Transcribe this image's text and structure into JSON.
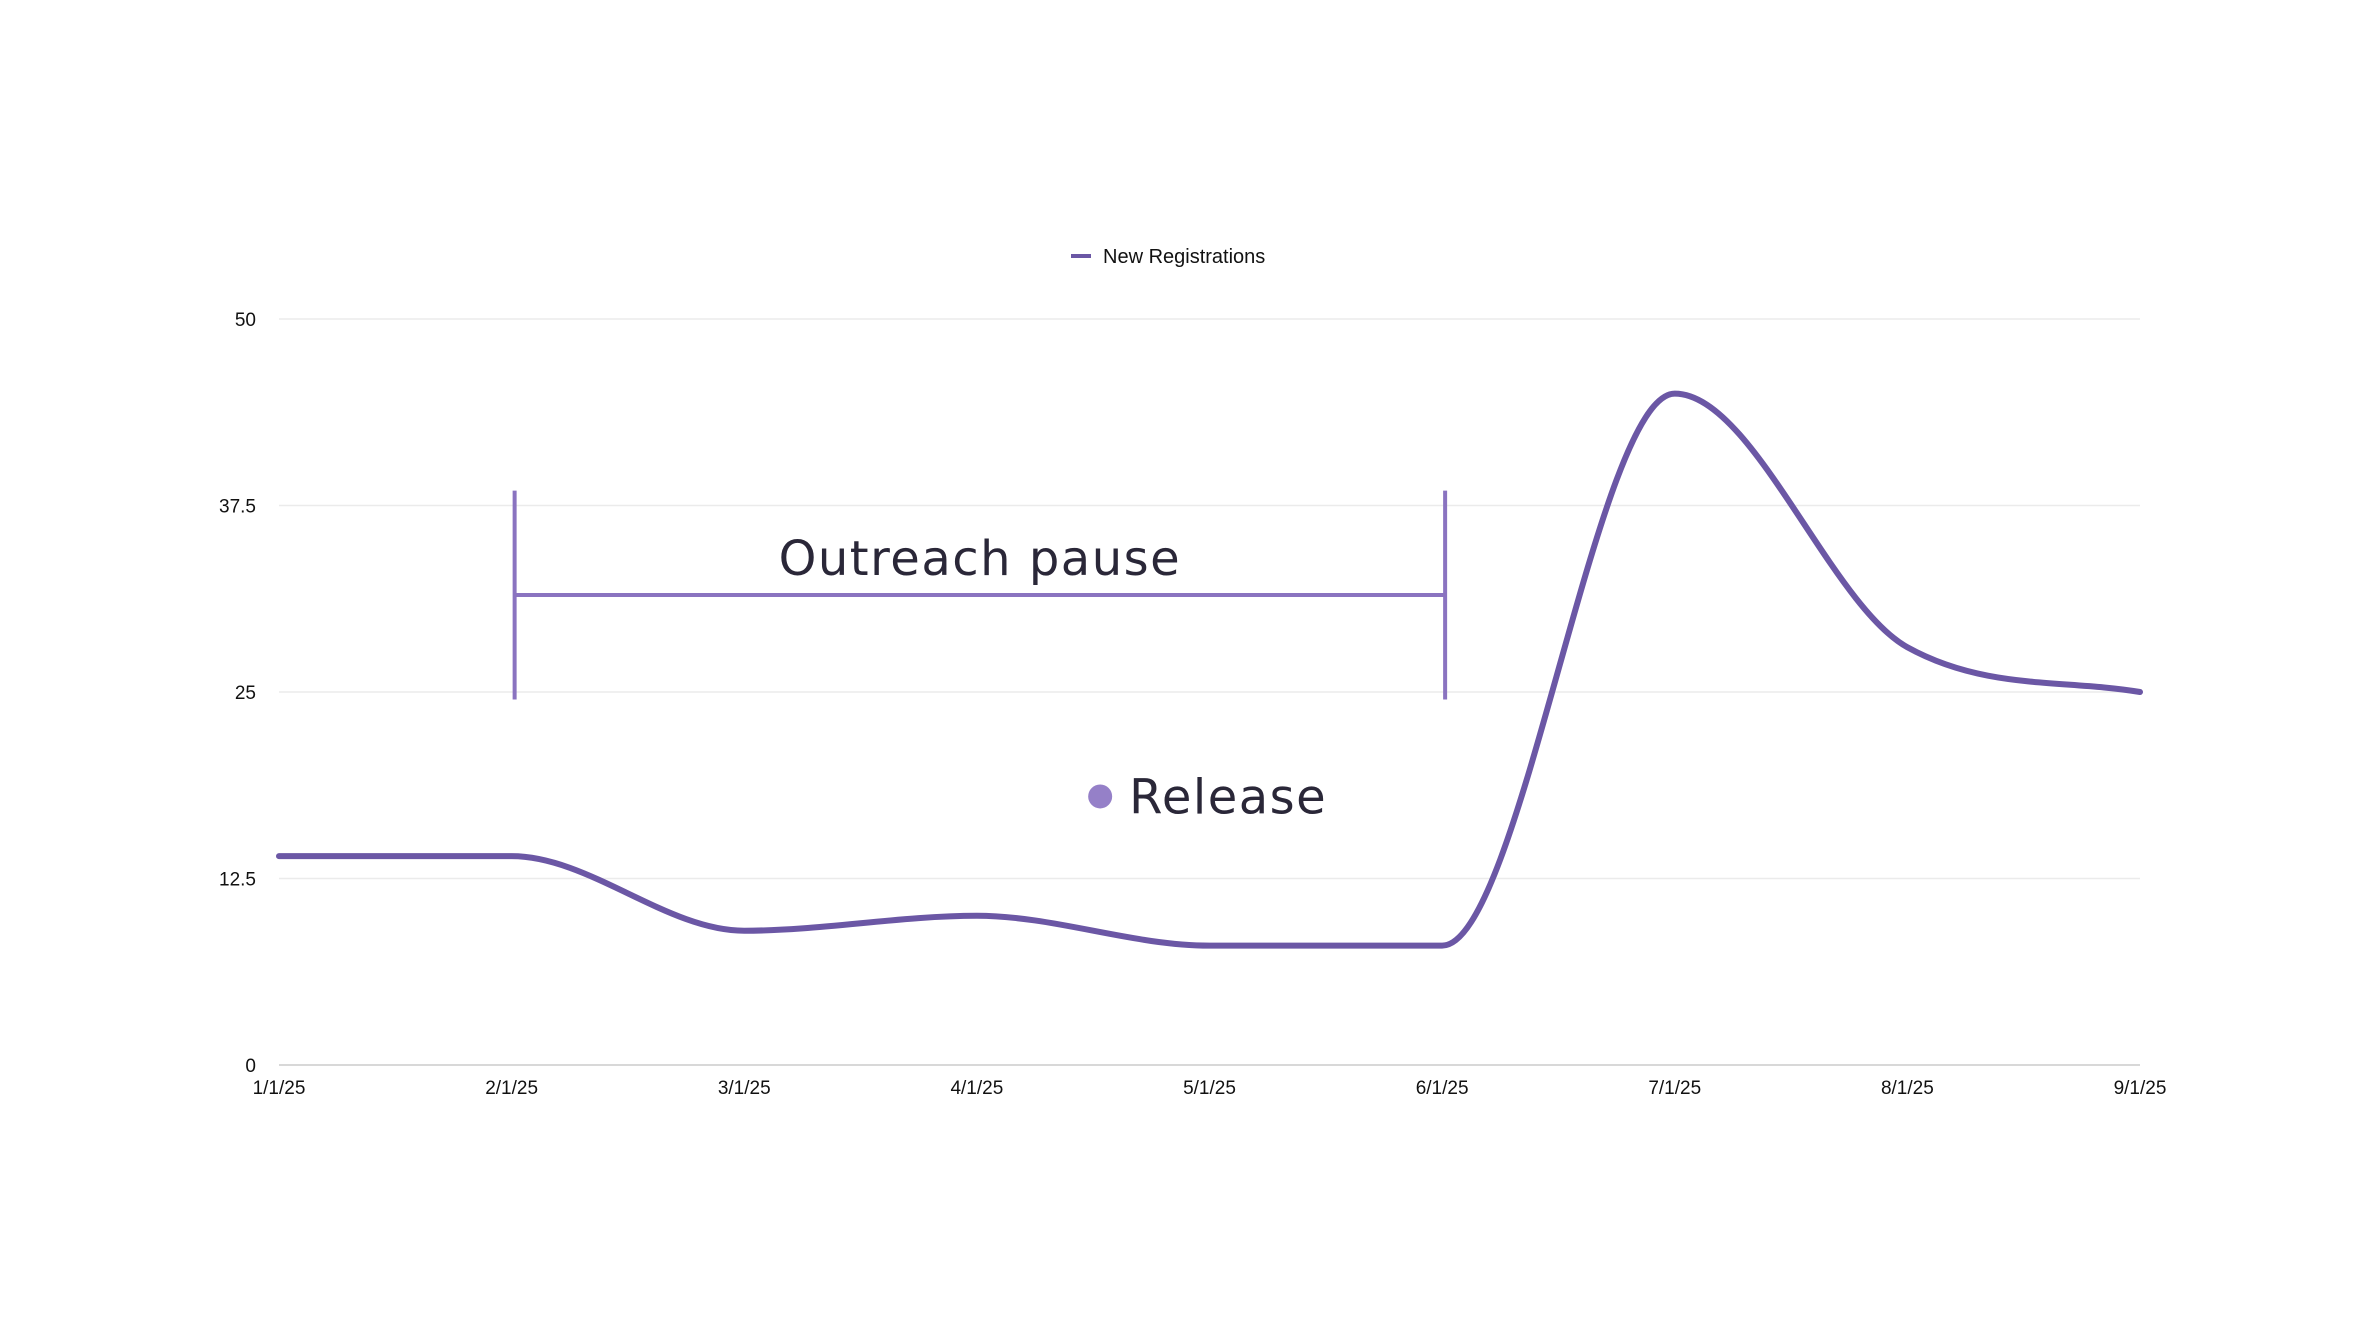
{
  "chart_data": {
    "type": "line",
    "title": "",
    "xlabel": "",
    "ylabel": "",
    "categories": [
      "1/1/25",
      "2/1/25",
      "3/1/25",
      "4/1/25",
      "5/1/25",
      "6/1/25",
      "7/1/25",
      "8/1/25",
      "9/1/25"
    ],
    "ylim": [
      0,
      50
    ],
    "yticks": [
      "0",
      "12.5",
      "25",
      "37.5",
      "50"
    ],
    "yticks_values": [
      0,
      12.5,
      25,
      37.5,
      50
    ],
    "grid": true,
    "legend": {
      "placement": "top-center",
      "entries": [
        "New Registrations"
      ]
    },
    "series": [
      {
        "name": "New Registrations",
        "color": "#6b57a5",
        "smooth": true,
        "values": [
          14,
          14,
          9,
          10,
          8,
          8,
          45,
          28,
          25
        ]
      }
    ],
    "annotations": [
      {
        "type": "range",
        "label": "Outreach pause",
        "x_start": "2/1/25",
        "x_end": "6/1/25",
        "y": 31.5,
        "y_from": 24.5,
        "y_to": 38.5,
        "color": "#8a73c0"
      },
      {
        "type": "point",
        "label": "Release",
        "x": 3.53,
        "y": 18,
        "color": "#9580c8"
      }
    ]
  }
}
